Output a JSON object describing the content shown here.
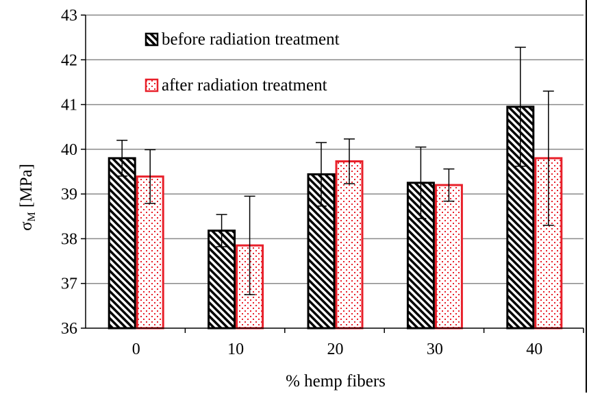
{
  "chart_data": {
    "type": "bar",
    "xlabel": "% hemp fibers",
    "ylabel": "σ",
    "ylabel_sub": "M",
    "ylabel_unit": " [MPa]",
    "ylim": [
      36,
      43
    ],
    "yticks": [
      36,
      37,
      38,
      39,
      40,
      41,
      42,
      43
    ],
    "grid": true,
    "legend_position": "top-left",
    "categories": [
      "0",
      "10",
      "20",
      "30",
      "40"
    ],
    "series": [
      {
        "name": "before radiation treatment",
        "values": [
          39.8,
          38.18,
          39.44,
          39.25,
          40.95
        ],
        "errors": [
          0.4,
          0.36,
          0.71,
          0.8,
          1.33
        ],
        "color": "#000000",
        "pattern": "diagonal-hatch"
      },
      {
        "name": "after radiation treatment",
        "values": [
          39.39,
          37.85,
          39.73,
          39.2,
          39.8
        ],
        "errors": [
          0.6,
          1.1,
          0.5,
          0.36,
          1.5
        ],
        "color": "#e8202a",
        "pattern": "dots"
      }
    ]
  }
}
